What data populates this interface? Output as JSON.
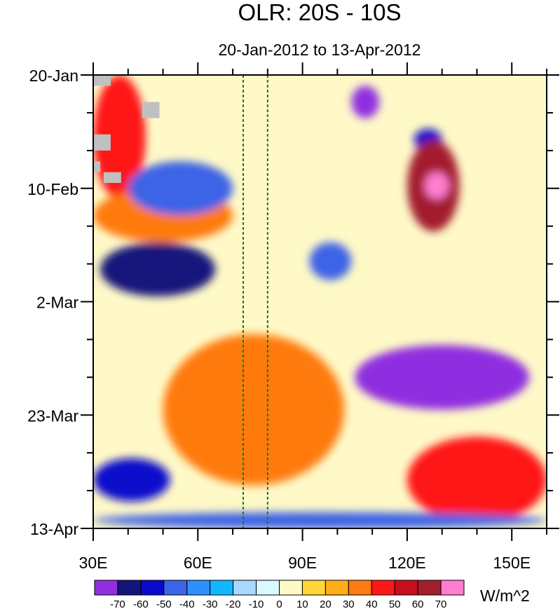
{
  "chart_data": {
    "type": "heatmap",
    "title": "OLR: 20S - 10S",
    "subtitle": "20-Jan-2012 to 13-Apr-2012",
    "x_ticks": [
      "30E",
      "60E",
      "90E",
      "120E",
      "150E"
    ],
    "x_tick_values": [
      30,
      60,
      90,
      120,
      150
    ],
    "xlim": [
      30,
      160
    ],
    "y_ticks": [
      "20-Jan",
      "10-Feb",
      "2-Mar",
      "23-Mar",
      "13-Apr"
    ],
    "ylim": [
      "2012-01-20",
      "2012-04-13"
    ],
    "reference_lines_lon": [
      73,
      80
    ],
    "colorbar": {
      "units": "W/m^2",
      "labels": [
        "-70",
        "-60",
        "-50",
        "-40",
        "-30",
        "-20",
        "-10",
        "0",
        "10",
        "20",
        "30",
        "40",
        "50",
        "60",
        "70"
      ],
      "colors": [
        "#8f2fe0",
        "#15157c",
        "#0a0acc",
        "#3c64e6",
        "#2e8fff",
        "#12b8ff",
        "#a8d8ff",
        "#d9f9ff",
        "#fff9c8",
        "#ffd53a",
        "#ffac1a",
        "#ff7a10",
        "#ff1818",
        "#c80e1c",
        "#a31f2f",
        "#ff7ed0"
      ]
    },
    "features": [
      {
        "type": "min",
        "lon": [
          104,
          112
        ],
        "dates": [
          "2012-01-22",
          "2012-01-28"
        ],
        "value": -80
      },
      {
        "type": "min",
        "lon": [
          122,
          130
        ],
        "dates": [
          "2012-01-30",
          "2012-02-03"
        ],
        "value": -60
      },
      {
        "type": "max",
        "lon": [
          120,
          135
        ],
        "dates": [
          "2012-02-01",
          "2012-02-18"
        ],
        "value": 60
      },
      {
        "type": "max",
        "lon": [
          125,
          132
        ],
        "dates": [
          "2012-02-07",
          "2012-02-12"
        ],
        "value": 75
      },
      {
        "type": "max",
        "lon": [
          30,
          45
        ],
        "dates": [
          "2012-01-20",
          "2012-02-12"
        ],
        "value": 40
      },
      {
        "type": "max",
        "lon": [
          30,
          70
        ],
        "dates": [
          "2012-02-10",
          "2012-02-20"
        ],
        "value": 30
      },
      {
        "type": "min",
        "lon": [
          40,
          70
        ],
        "dates": [
          "2012-02-05",
          "2012-02-15"
        ],
        "value": -50
      },
      {
        "type": "min",
        "lon": [
          32,
          65
        ],
        "dates": [
          "2012-02-20",
          "2012-03-01"
        ],
        "value": -70
      },
      {
        "type": "min",
        "lon": [
          92,
          104
        ],
        "dates": [
          "2012-02-20",
          "2012-02-27"
        ],
        "value": -50
      },
      {
        "type": "max",
        "lon": [
          50,
          102
        ],
        "dates": [
          "2012-03-08",
          "2012-04-05"
        ],
        "value": 30
      },
      {
        "type": "min",
        "lon": [
          105,
          155
        ],
        "dates": [
          "2012-03-10",
          "2012-03-22"
        ],
        "value": -80
      },
      {
        "type": "max",
        "lon": [
          120,
          160
        ],
        "dates": [
          "2012-03-27",
          "2012-04-12"
        ],
        "value": 40
      },
      {
        "type": "min",
        "lon": [
          30,
          52
        ],
        "dates": [
          "2012-03-31",
          "2012-04-08"
        ],
        "value": -60
      },
      {
        "type": "min",
        "lon": [
          30,
          160
        ],
        "dates": [
          "2012-04-10",
          "2012-04-13"
        ],
        "value": -50
      }
    ]
  }
}
